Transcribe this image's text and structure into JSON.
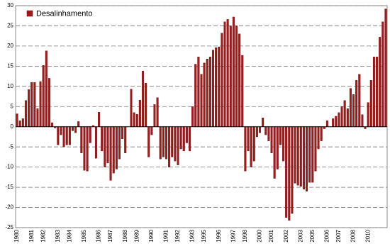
{
  "chart_data": {
    "type": "bar",
    "categories": [
      "1980",
      null,
      null,
      null,
      null,
      "1981",
      null,
      null,
      null,
      "1982",
      null,
      null,
      null,
      null,
      "1983",
      null,
      null,
      null,
      "1984",
      null,
      null,
      null,
      null,
      "1985",
      null,
      null,
      null,
      null,
      "1986",
      null,
      null,
      null,
      "1987",
      null,
      null,
      null,
      null,
      "1988",
      null,
      null,
      null,
      "1989",
      null,
      null,
      null,
      null,
      "1990",
      null,
      null,
      null,
      null,
      "1991",
      null,
      null,
      null,
      "1992",
      null,
      null,
      null,
      null,
      "1993",
      null,
      null,
      null,
      "1995",
      null,
      null,
      null,
      null,
      "1996",
      null,
      null,
      null,
      null,
      "1997",
      null,
      null,
      null,
      "1998",
      null,
      null,
      null,
      null,
      "2000",
      null,
      null,
      null,
      "2001",
      null,
      null,
      null,
      null,
      "2002",
      null,
      null,
      null,
      null,
      "2003",
      null,
      null,
      null,
      "2005",
      null,
      null,
      null,
      null,
      "2006",
      null,
      null,
      null,
      "2007",
      null,
      null,
      null,
      null,
      "2008",
      null,
      null,
      null,
      null,
      "2010",
      null,
      null,
      null,
      null,
      null,
      null
    ],
    "series": [
      {
        "name": "Desalinhamento",
        "color": "#9b1c1c",
        "values": [
          3.2,
          1.5,
          2,
          6.5,
          9.2,
          11,
          11,
          4.5,
          11.2,
          15.2,
          18.8,
          12,
          1,
          -0.3,
          -4.5,
          -2,
          -5,
          -4.5,
          -4.5,
          -1,
          -1.5,
          1.3,
          -6.5,
          -10.8,
          -11,
          -4,
          0.3,
          -7.8,
          3.6,
          -6,
          -10,
          -9,
          -13.3,
          -11.5,
          -10.5,
          -8,
          -3,
          -6.5,
          0,
          9.3,
          3.5,
          3.1,
          6.6,
          13.8,
          10.8,
          -7.5,
          -2,
          5.5,
          7.2,
          -8,
          -7.5,
          -8,
          -10,
          -7.5,
          -8.5,
          -9.5,
          -5.5,
          -6,
          -4,
          -6,
          5,
          15.5,
          17.3,
          13,
          15.8,
          16.8,
          17.3,
          19,
          19.6,
          19.8,
          23.2,
          26,
          26.6,
          25,
          27.2,
          25,
          23,
          17.7,
          -11,
          -6,
          -10,
          -8.5,
          -2.5,
          -1.5,
          2.2,
          -2,
          -3.5,
          -6.5,
          -12.8,
          -10.5,
          -4.5,
          -8.5,
          -22.5,
          -23.2,
          -21.5,
          -14,
          -14.5,
          -14.8,
          -15.5,
          -16,
          -13.8,
          -13.8,
          -11,
          -5.5,
          -3.5,
          -0.5,
          1.5,
          0,
          2,
          2.6,
          3.5,
          5,
          6.5,
          4.5,
          9.5,
          8,
          11.5,
          13,
          3,
          -0.5,
          6,
          11.5,
          17.3,
          17.3,
          22.2,
          26,
          29.2
        ]
      }
    ],
    "ylim": [
      -25,
      30
    ],
    "yticks": [
      -25,
      -20,
      -15,
      -10,
      -5,
      0,
      5,
      10,
      15,
      20,
      25,
      30
    ],
    "grid": true,
    "legend": "upper-left"
  }
}
